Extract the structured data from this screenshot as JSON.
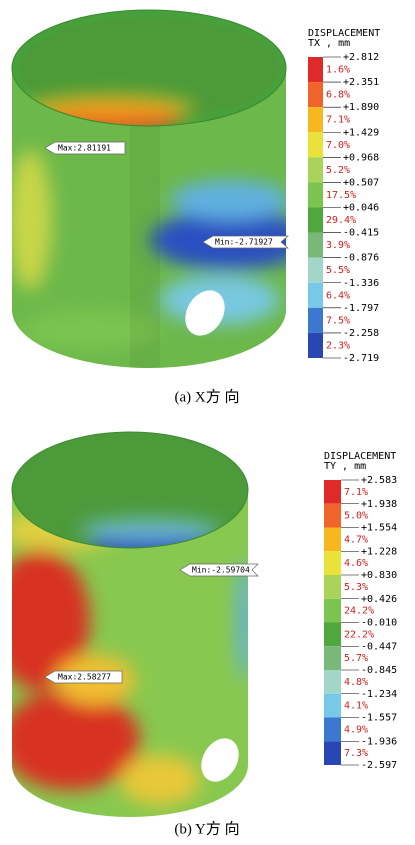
{
  "panels": [
    {
      "legend_title": "DISPLACEMENT",
      "legend_unit": "TX , mm",
      "levels": [
        "+2.812",
        "+2.351",
        "+1.890",
        "+1.429",
        "+0.968",
        "+0.507",
        "+0.046",
        "-0.415",
        "-0.876",
        "-1.336",
        "-1.797",
        "-2.258",
        "-2.719"
      ],
      "percents": [
        "1.6%",
        "6.8%",
        "7.1%",
        "7.0%",
        "5.2%",
        "17.5%",
        "29.4%",
        "3.9%",
        "5.5%",
        "6.4%",
        "7.5%",
        "2.3%"
      ],
      "colors": [
        "#e02a2a",
        "#f0642a",
        "#f6b81e",
        "#e8e23a",
        "#a8d45a",
        "#7cc450",
        "#4fa83e",
        "#78b878",
        "#a2d6c8",
        "#78c8e8",
        "#3c78d0",
        "#2846b4"
      ],
      "max_label": "Max:2.81191",
      "min_label": "Min:-2.71927",
      "caption": "(a) X方 向"
    },
    {
      "legend_title": "DISPLACEMENT",
      "legend_unit": "TY , mm",
      "levels": [
        "+2.583",
        "+1.938",
        "+1.554",
        "+1.228",
        "+0.830",
        "+0.426",
        "-0.010",
        "-0.447",
        "-0.845",
        "-1.234",
        "-1.557",
        "-1.936",
        "-2.597"
      ],
      "percents": [
        "7.1%",
        "5.0%",
        "4.7%",
        "4.6%",
        "5.3%",
        "24.2%",
        "22.2%",
        "5.7%",
        "4.8%",
        "4.1%",
        "4.9%",
        "7.3%"
      ],
      "colors": [
        "#e02a2a",
        "#f0642a",
        "#f6b81e",
        "#e8e23a",
        "#a8d45a",
        "#7cc450",
        "#4fa83e",
        "#78b878",
        "#a2d6c8",
        "#78c8e8",
        "#3c78d0",
        "#2846b4"
      ],
      "max_label": "Max:2.58277",
      "min_label": "Min:-2.59704",
      "caption": "(b) Y方 向"
    }
  ]
}
